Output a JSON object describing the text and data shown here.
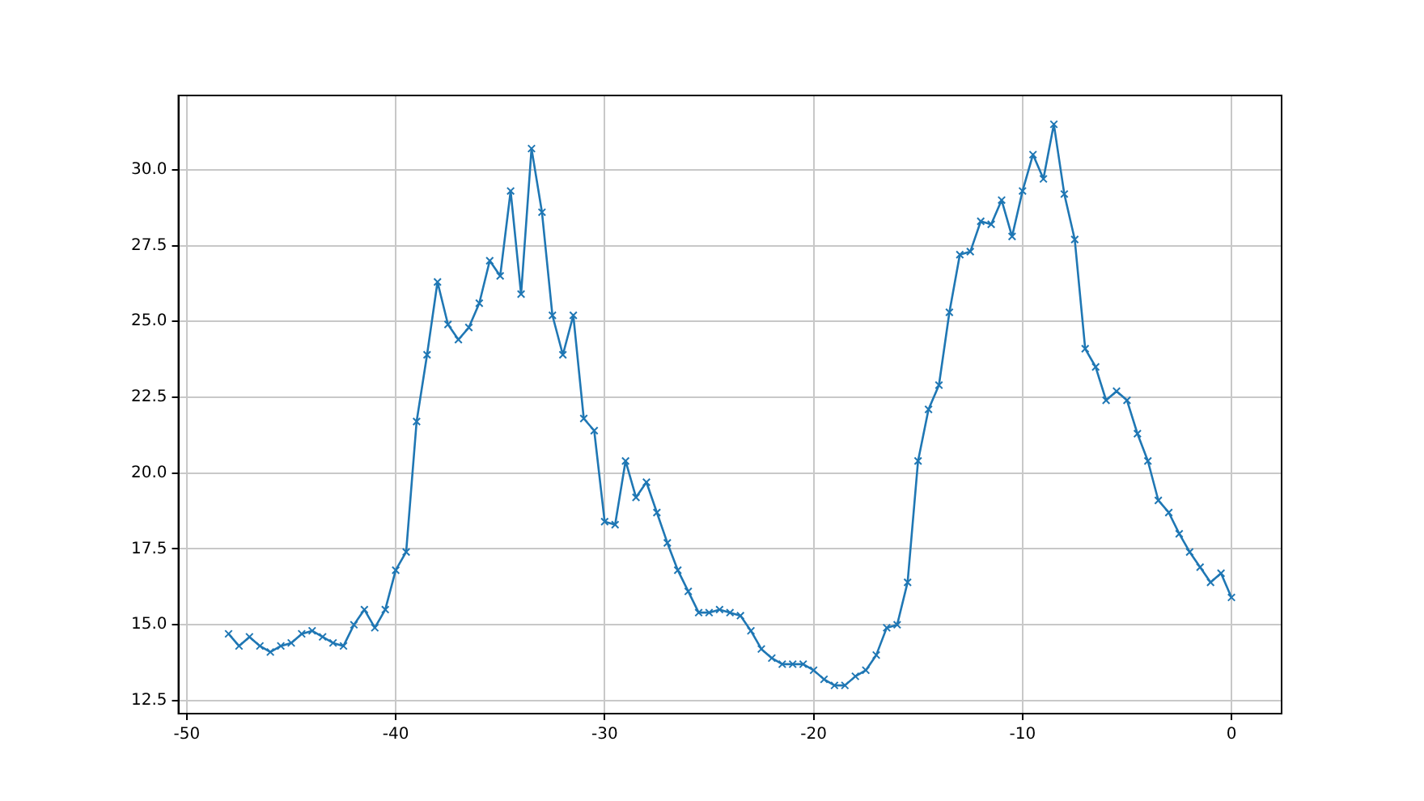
{
  "chart_data": {
    "type": "line",
    "x": [
      -48,
      -47.5,
      -47,
      -46.5,
      -46,
      -45.5,
      -45,
      -44.5,
      -44,
      -43.5,
      -43,
      -42.5,
      -42,
      -41.5,
      -41,
      -40.5,
      -40,
      -39.5,
      -39,
      -38.5,
      -38,
      -37.5,
      -37,
      -36.5,
      -36,
      -35.5,
      -35,
      -34.5,
      -34,
      -33.5,
      -33,
      -32.5,
      -32,
      -31.5,
      -31,
      -30.5,
      -30,
      -29.5,
      -29,
      -28.5,
      -28,
      -27.5,
      -27,
      -26.5,
      -26,
      -25.5,
      -25,
      -24.5,
      -24,
      -23.5,
      -23,
      -22.5,
      -22,
      -21.5,
      -21,
      -20.5,
      -20,
      -19.5,
      -19,
      -18.5,
      -18,
      -17.5,
      -17,
      -16.5,
      -16,
      -15.5,
      -15,
      -14.5,
      -14,
      -13.5,
      -13,
      -12.5,
      -12,
      -11.5,
      -11,
      -10.5,
      -10,
      -9.5,
      -9,
      -8.5,
      -8,
      -7.5,
      -7,
      -6.5,
      -6,
      -5.5,
      -5,
      -4.5,
      -4,
      -3.5,
      -3,
      -2.5,
      -2,
      -1.5,
      -1,
      -0.5,
      0
    ],
    "series": [
      {
        "color": "#1f77b4",
        "values": [
          14.7,
          14.3,
          14.6,
          14.3,
          14.1,
          14.3,
          14.4,
          14.7,
          14.8,
          14.6,
          14.4,
          14.3,
          15.0,
          15.5,
          14.9,
          15.5,
          16.8,
          17.4,
          21.7,
          23.9,
          26.3,
          24.9,
          24.4,
          24.8,
          25.6,
          27.0,
          26.5,
          29.3,
          25.9,
          30.7,
          28.6,
          25.2,
          23.9,
          25.2,
          21.8,
          21.4,
          18.4,
          18.3,
          20.4,
          19.2,
          19.7,
          18.7,
          17.7,
          16.8,
          16.1,
          15.4,
          15.4,
          15.5,
          15.4,
          15.3,
          14.8,
          14.2,
          13.9,
          13.7,
          13.7,
          13.7,
          13.5,
          13.2,
          13.0,
          13.0,
          13.3,
          13.5,
          14.0,
          14.9,
          15.0,
          16.4,
          20.4,
          22.1,
          22.9,
          25.3,
          27.2,
          27.3,
          28.3,
          28.2,
          29.0,
          27.8,
          29.3,
          30.5,
          29.7,
          31.5,
          29.2,
          27.7,
          24.1,
          23.5,
          22.4,
          22.7,
          22.4,
          21.3,
          20.4,
          19.1,
          18.7,
          18.0,
          17.4,
          16.9,
          16.4,
          16.7,
          15.9
        ]
      }
    ],
    "xlim": [
      -50.4,
      2.4
    ],
    "xticks": [
      -50,
      -40,
      -30,
      -20,
      -10,
      0
    ],
    "ylim": [
      12.07,
      32.45
    ],
    "yticks": [
      {
        "value": 12.5,
        "label": "12.5"
      },
      {
        "value": 15,
        "label": "15.0"
      },
      {
        "value": 17.5,
        "label": "17.5"
      },
      {
        "value": 20,
        "label": "20.0"
      },
      {
        "value": 22.5,
        "label": "22.5"
      },
      {
        "value": 25,
        "label": "25.0"
      },
      {
        "value": 27.5,
        "label": "27.5"
      },
      {
        "value": 30,
        "label": "30.0"
      }
    ],
    "grid": true,
    "marker": "cross",
    "line_style": "solid"
  }
}
